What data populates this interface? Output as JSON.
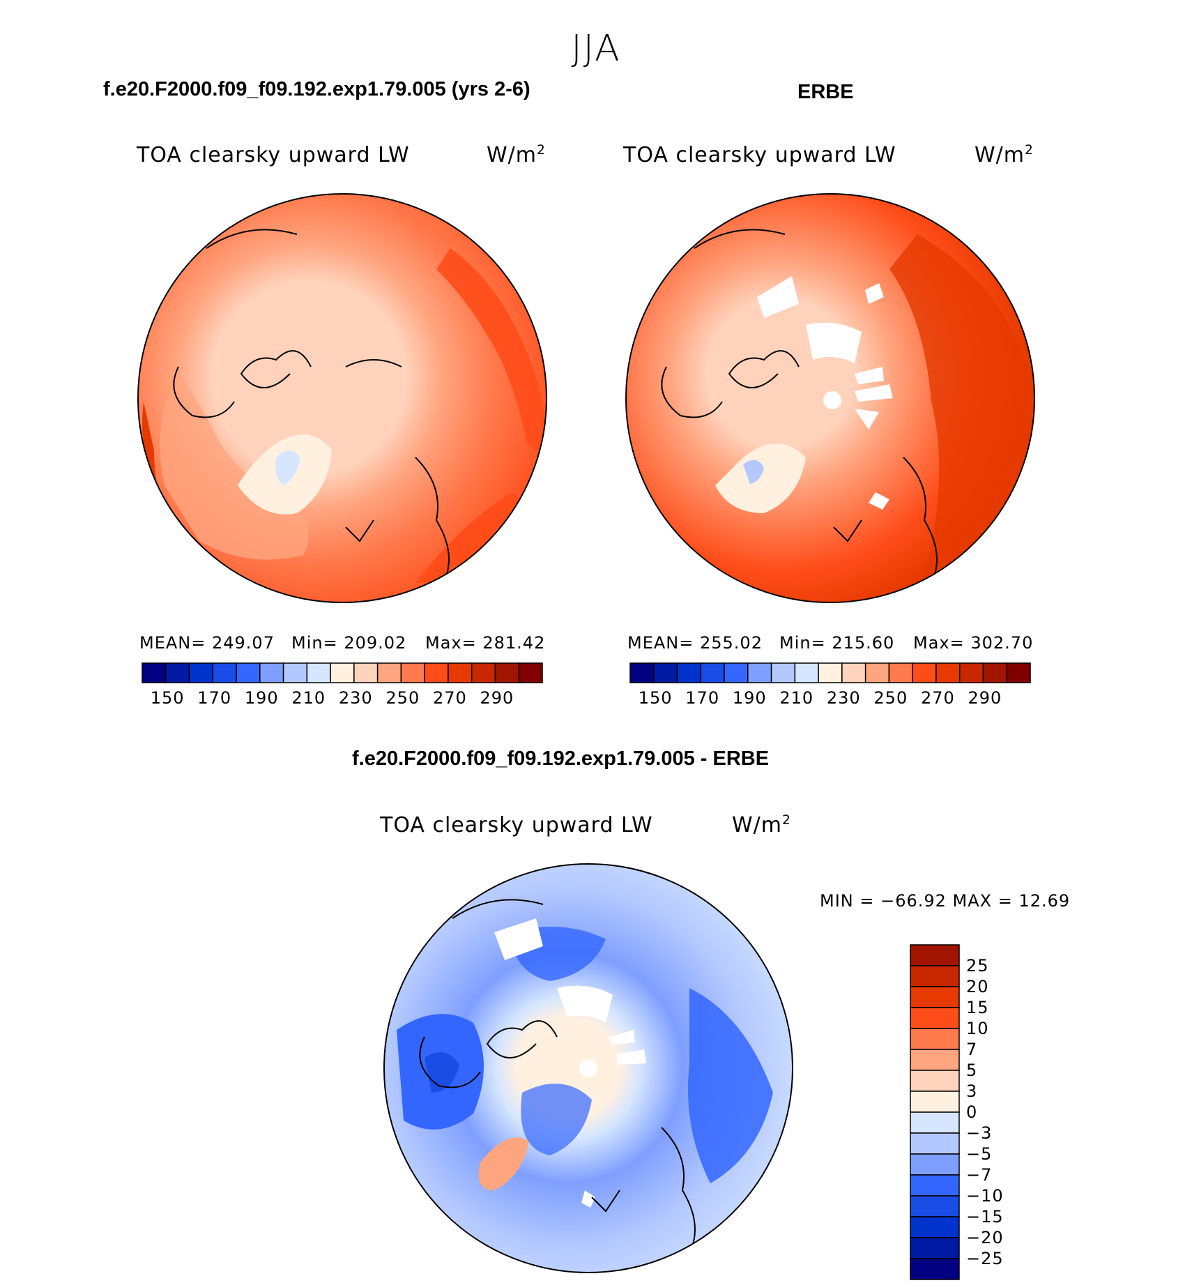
{
  "season": "JJA",
  "variable": "TOA clearsky upward LW",
  "units_base": "W/m",
  "units_exp": "2",
  "panels": {
    "model": {
      "title": "f.e20.F2000.f09_f09.192.exp1.79.005 (yrs 2-6)",
      "mean": "MEAN= 249.07",
      "min": "Min= 209.02",
      "max": "Max= 281.42"
    },
    "obs": {
      "title": "ERBE",
      "mean": "MEAN= 255.02",
      "min": "Min= 215.60",
      "max": "Max= 302.70"
    },
    "diff": {
      "title": "f.e20.F2000.f09_f09.192.exp1.79.005 - ERBE",
      "minmax": "MIN = −66.92 MAX =   12.69"
    }
  },
  "abs_colorbar": {
    "colors": [
      "#000080",
      "#001aa3",
      "#0033cc",
      "#1a4ce6",
      "#3366ff",
      "#7f9fff",
      "#b3c8ff",
      "#d6e6ff",
      "#fff0e0",
      "#ffd2bb",
      "#ffa580",
      "#ff7a4d",
      "#ff4d1a",
      "#e63a00",
      "#c82800",
      "#a01400",
      "#800000"
    ],
    "labels": [
      "150",
      "170",
      "190",
      "210",
      "230",
      "250",
      "270",
      "290"
    ]
  },
  "diff_colorbar": {
    "colors": [
      "#000080",
      "#001aa3",
      "#0033cc",
      "#1a4ce6",
      "#3366ff",
      "#7f9fff",
      "#b3c8ff",
      "#d6e6ff",
      "#fff0e0",
      "#ffd2bb",
      "#ffa580",
      "#ff7a4d",
      "#ff4d1a",
      "#e63a00",
      "#c82800",
      "#a01400"
    ],
    "labels": [
      "25",
      "20",
      "15",
      "10",
      "7",
      "5",
      "3",
      "0",
      "−3",
      "−5",
      "−7",
      "−10",
      "−15",
      "−20",
      "−25"
    ]
  },
  "chart_data": [
    {
      "type": "heatmap",
      "projection": "north polar stereographic",
      "title": "TOA clearsky upward LW",
      "units": "W/m2",
      "case": "f.e20.F2000.f09_f09.192.exp1.79.005 (yrs 2-6)",
      "mean": 249.07,
      "min": 209.02,
      "max": 281.42,
      "contour_levels": [
        140,
        150,
        160,
        170,
        180,
        190,
        200,
        210,
        220,
        230,
        240,
        250,
        260,
        270,
        280,
        290
      ]
    },
    {
      "type": "heatmap",
      "projection": "north polar stereographic",
      "title": "TOA clearsky upward LW",
      "units": "W/m2",
      "case": "ERBE",
      "mean": 255.02,
      "min": 215.6,
      "max": 302.7,
      "contour_levels": [
        140,
        150,
        160,
        170,
        180,
        190,
        200,
        210,
        220,
        230,
        240,
        250,
        260,
        270,
        280,
        290
      ]
    },
    {
      "type": "heatmap",
      "projection": "north polar stereographic",
      "title": "TOA clearsky upward LW",
      "units": "W/m2",
      "case": "f.e20.F2000.f09_f09.192.exp1.79.005 - ERBE",
      "min": -66.92,
      "max": 12.69,
      "contour_levels": [
        -25,
        -20,
        -15,
        -10,
        -7,
        -5,
        -3,
        0,
        3,
        5,
        7,
        10,
        15,
        20,
        25
      ]
    }
  ]
}
